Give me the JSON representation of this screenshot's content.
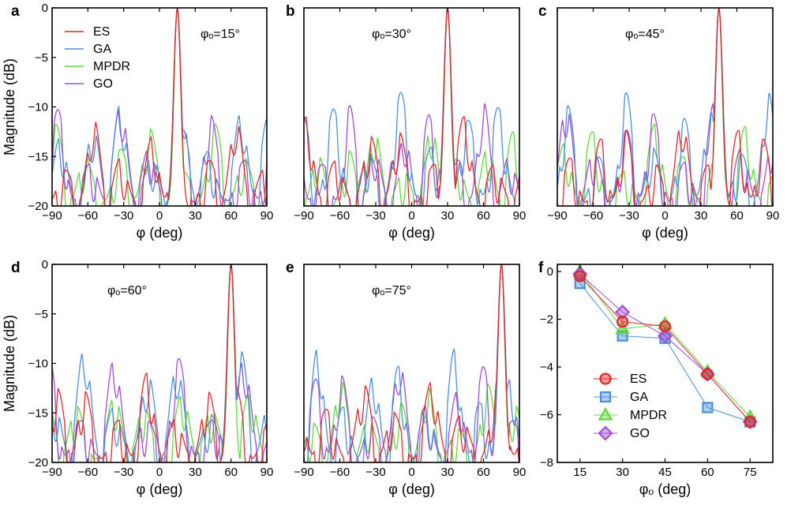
{
  "colors": {
    "ES": "#e0262b",
    "GA": "#4a90d9",
    "MPDR": "#5fd83c",
    "GO": "#a24bd6"
  },
  "series_names": [
    "ES",
    "GA",
    "MPDR",
    "GO"
  ],
  "chart_data": [
    {
      "panel": "a",
      "type": "line",
      "annotation": "φₒ=15°",
      "steer_deg": 15,
      "xlabel": "φ (deg)",
      "ylabel": "Magnitude (dB)",
      "xlim": [
        -90,
        90
      ],
      "ylim": [
        -20,
        0
      ],
      "xticks": [
        -90,
        -60,
        -30,
        0,
        30,
        60,
        90
      ],
      "yticks": [
        -20,
        -15,
        -10,
        -5,
        0
      ],
      "legend": [
        "ES",
        "GA",
        "MPDR",
        "GO"
      ]
    },
    {
      "panel": "b",
      "type": "line",
      "annotation": "φₒ=30°",
      "steer_deg": 30,
      "xlabel": "φ (deg)",
      "ylabel": "",
      "xlim": [
        -90,
        90
      ],
      "ylim": [
        -20,
        0
      ],
      "xticks": [
        -90,
        -60,
        -30,
        0,
        30,
        60,
        90
      ],
      "yticks": []
    },
    {
      "panel": "c",
      "type": "line",
      "annotation": "φₒ=45°",
      "steer_deg": 45,
      "xlabel": "φ (deg)",
      "ylabel": "",
      "xlim": [
        -90,
        90
      ],
      "ylim": [
        -20,
        0
      ],
      "xticks": [
        -90,
        -60,
        -30,
        0,
        30,
        60,
        90
      ],
      "yticks": []
    },
    {
      "panel": "d",
      "type": "line",
      "annotation": "φₒ=60°",
      "steer_deg": 60,
      "xlabel": "φ (deg)",
      "ylabel": "Magnitude (dB)",
      "xlim": [
        -90,
        90
      ],
      "ylim": [
        -20,
        0
      ],
      "xticks": [
        -90,
        -60,
        -30,
        0,
        30,
        60,
        90
      ],
      "yticks": [
        -20,
        -15,
        -10,
        -5,
        0
      ]
    },
    {
      "panel": "e",
      "type": "line",
      "annotation": "φₒ=75°",
      "steer_deg": 75,
      "xlabel": "φ (deg)",
      "ylabel": "",
      "xlim": [
        -90,
        90
      ],
      "ylim": [
        -20,
        0
      ],
      "xticks": [
        -90,
        -60,
        -30,
        0,
        30,
        60,
        90
      ],
      "yticks": []
    },
    {
      "panel": "f",
      "type": "line",
      "annotation": "",
      "xlabel": "φₒ (deg)",
      "ylabel": "",
      "categories": [
        15,
        30,
        45,
        60,
        75
      ],
      "xlim": [
        7,
        83
      ],
      "ylim": [
        -8,
        0.3
      ],
      "xticks": [
        15,
        30,
        45,
        60,
        75
      ],
      "yticks": [
        -8,
        -6,
        -4,
        -2,
        0
      ],
      "series": [
        {
          "name": "ES",
          "marker": "circle",
          "values": [
            -0.2,
            -2.1,
            -2.3,
            -4.3,
            -6.3
          ]
        },
        {
          "name": "GA",
          "marker": "square",
          "values": [
            -0.5,
            -2.7,
            -2.8,
            -5.7,
            -6.3
          ]
        },
        {
          "name": "MPDR",
          "marker": "triangle",
          "values": [
            0.0,
            -2.4,
            -2.2,
            -4.2,
            -6.1
          ]
        },
        {
          "name": "GO",
          "marker": "diamond",
          "values": [
            -0.1,
            -1.7,
            -2.7,
            -4.3,
            -6.3
          ]
        }
      ],
      "legend": [
        "ES",
        "GA",
        "MPDR",
        "GO"
      ]
    }
  ]
}
